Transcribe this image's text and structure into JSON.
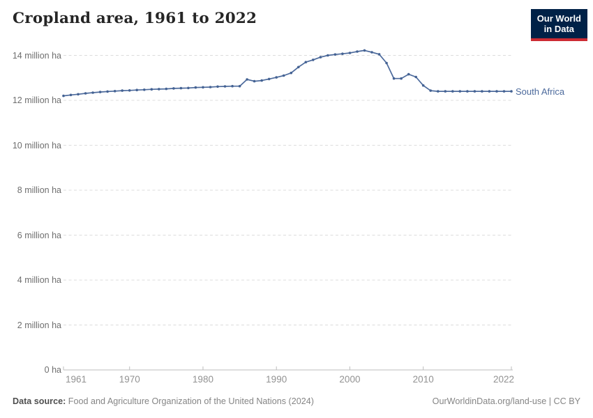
{
  "header": {
    "title": "Cropland area, 1961 to 2022"
  },
  "logo": {
    "line1": "Our World",
    "line2": "in Data",
    "bg_color": "#002147",
    "accent_color": "#CC2B33"
  },
  "chart_data": {
    "type": "line",
    "title": "Cropland area, 1961 to 2022",
    "unit": "million ha",
    "grid": "horizontal-dashed",
    "legend_position": "end-of-line-label",
    "xlim": [
      1961,
      2022
    ],
    "ylim": [
      0,
      14
    ],
    "x": [
      1961,
      1962,
      1963,
      1964,
      1965,
      1966,
      1967,
      1968,
      1969,
      1970,
      1971,
      1972,
      1973,
      1974,
      1975,
      1976,
      1977,
      1978,
      1979,
      1980,
      1981,
      1982,
      1983,
      1984,
      1985,
      1986,
      1987,
      1988,
      1989,
      1990,
      1991,
      1992,
      1993,
      1994,
      1995,
      1996,
      1997,
      1998,
      1999,
      2000,
      2001,
      2002,
      2003,
      2004,
      2005,
      2006,
      2007,
      2008,
      2009,
      2010,
      2011,
      2012,
      2013,
      2014,
      2015,
      2016,
      2017,
      2018,
      2019,
      2020,
      2021,
      2022
    ],
    "series": [
      {
        "name": "South Africa",
        "color": "#4C6A9C",
        "values": [
          12.2,
          12.24,
          12.27,
          12.31,
          12.34,
          12.37,
          12.39,
          12.41,
          12.43,
          12.44,
          12.46,
          12.47,
          12.49,
          12.5,
          12.51,
          12.53,
          12.54,
          12.55,
          12.57,
          12.58,
          12.59,
          12.61,
          12.62,
          12.63,
          12.63,
          12.93,
          12.85,
          12.88,
          12.95,
          13.02,
          13.1,
          13.22,
          13.48,
          13.7,
          13.8,
          13.92,
          14.0,
          14.04,
          14.07,
          14.11,
          14.17,
          14.22,
          14.14,
          14.05,
          13.66,
          12.97,
          12.97,
          13.16,
          13.04,
          12.66,
          12.43,
          12.4,
          12.4,
          12.4,
          12.4,
          12.4,
          12.4,
          12.4,
          12.4,
          12.4,
          12.4,
          12.4
        ]
      }
    ],
    "yticks": [
      {
        "value": 0,
        "label": "0 ha"
      },
      {
        "value": 2,
        "label": "2 million ha"
      },
      {
        "value": 4,
        "label": "4 million ha"
      },
      {
        "value": 6,
        "label": "6 million ha"
      },
      {
        "value": 8,
        "label": "8 million ha"
      },
      {
        "value": 10,
        "label": "10 million ha"
      },
      {
        "value": 12,
        "label": "12 million ha"
      },
      {
        "value": 14,
        "label": "14 million ha"
      }
    ],
    "xticks": [
      1961,
      1970,
      1980,
      1990,
      2000,
      2010,
      2022
    ],
    "colors": {
      "gridline": "#dcdcdc",
      "axis": "#bdbdbd",
      "line": "#4C6A9C",
      "marker": "#446293",
      "entity_label": "#4C6A9C"
    }
  },
  "footer": {
    "source_label": "Data source:",
    "source_text": "Food and Agriculture Organization of the United Nations (2024)",
    "credit": "OurWorldinData.org/land-use | CC BY"
  }
}
